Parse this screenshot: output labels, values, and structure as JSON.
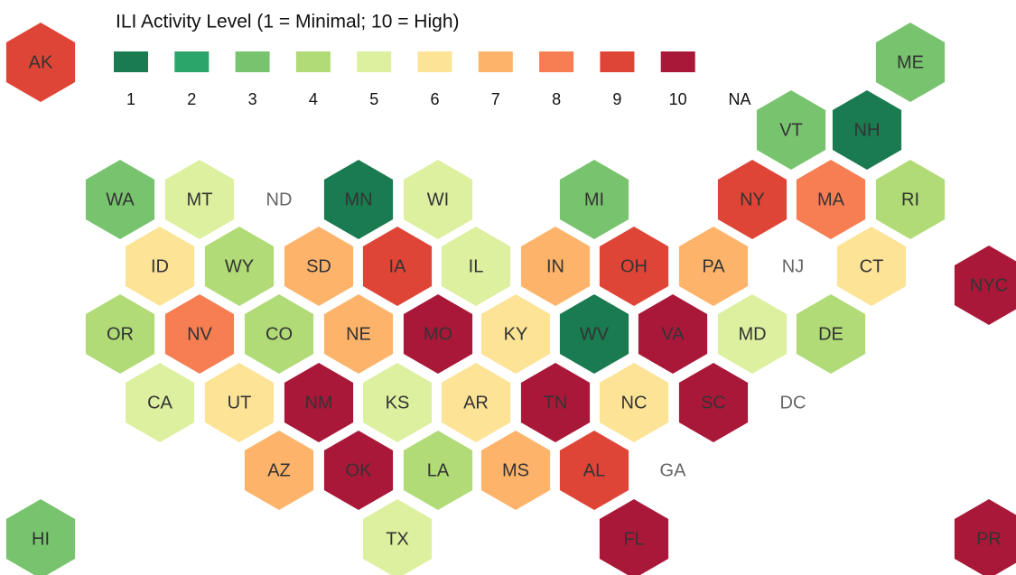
{
  "legend": {
    "title": "ILI Activity Level  (1 = Minimal; 10 = High)",
    "levels": [
      {
        "value": 1,
        "color": "#1a7a50"
      },
      {
        "value": 2,
        "color": "#2ca56a"
      },
      {
        "value": 3,
        "color": "#78c46e"
      },
      {
        "value": 4,
        "color": "#b0db76"
      },
      {
        "value": 5,
        "color": "#dcf0a0"
      },
      {
        "value": 6,
        "color": "#fde396"
      },
      {
        "value": 7,
        "color": "#fdb46a"
      },
      {
        "value": 8,
        "color": "#f67e52"
      },
      {
        "value": 9,
        "color": "#de4537"
      },
      {
        "value": 10,
        "color": "#aa1839"
      }
    ],
    "na_label": "NA"
  },
  "states": [
    {
      "name": "AK",
      "level": 9
    },
    {
      "name": "ME",
      "level": 3
    },
    {
      "name": "VT",
      "level": 3
    },
    {
      "name": "NH",
      "level": 1
    },
    {
      "name": "WA",
      "level": 3
    },
    {
      "name": "MT",
      "level": 5
    },
    {
      "name": "ND",
      "level": null
    },
    {
      "name": "MN",
      "level": 1
    },
    {
      "name": "WI",
      "level": 5
    },
    {
      "name": "MI",
      "level": 3
    },
    {
      "name": "NY",
      "level": 9
    },
    {
      "name": "MA",
      "level": 8
    },
    {
      "name": "RI",
      "level": 4
    },
    {
      "name": "ID",
      "level": 6
    },
    {
      "name": "WY",
      "level": 4
    },
    {
      "name": "SD",
      "level": 7
    },
    {
      "name": "IA",
      "level": 9
    },
    {
      "name": "IL",
      "level": 5
    },
    {
      "name": "IN",
      "level": 7
    },
    {
      "name": "OH",
      "level": 9
    },
    {
      "name": "PA",
      "level": 7
    },
    {
      "name": "NJ",
      "level": null
    },
    {
      "name": "CT",
      "level": 6
    },
    {
      "name": "NYC",
      "level": 10
    },
    {
      "name": "OR",
      "level": 4
    },
    {
      "name": "NV",
      "level": 8
    },
    {
      "name": "CO",
      "level": 4
    },
    {
      "name": "NE",
      "level": 7
    },
    {
      "name": "MO",
      "level": 10
    },
    {
      "name": "KY",
      "level": 6
    },
    {
      "name": "WV",
      "level": 1
    },
    {
      "name": "VA",
      "level": 10
    },
    {
      "name": "MD",
      "level": 5
    },
    {
      "name": "DE",
      "level": 4
    },
    {
      "name": "CA",
      "level": 5
    },
    {
      "name": "UT",
      "level": 6
    },
    {
      "name": "NM",
      "level": 10
    },
    {
      "name": "KS",
      "level": 5
    },
    {
      "name": "AR",
      "level": 6
    },
    {
      "name": "TN",
      "level": 10
    },
    {
      "name": "NC",
      "level": 6
    },
    {
      "name": "SC",
      "level": 10
    },
    {
      "name": "DC",
      "level": null
    },
    {
      "name": "AZ",
      "level": 7
    },
    {
      "name": "OK",
      "level": 10
    },
    {
      "name": "LA",
      "level": 4
    },
    {
      "name": "MS",
      "level": 7
    },
    {
      "name": "AL",
      "level": 9
    },
    {
      "name": "GA",
      "level": null
    },
    {
      "name": "HI",
      "level": 3
    },
    {
      "name": "TX",
      "level": 5
    },
    {
      "name": "FL",
      "level": 10
    },
    {
      "name": "PR",
      "level": 10
    }
  ]
}
